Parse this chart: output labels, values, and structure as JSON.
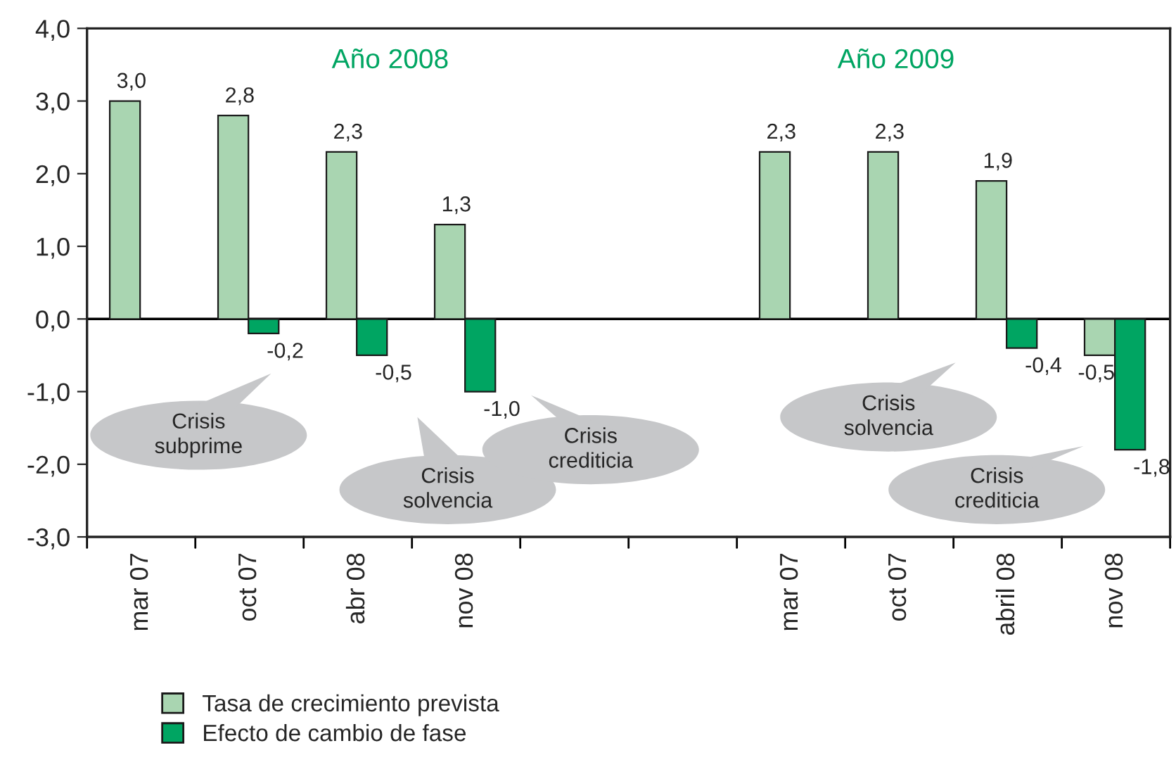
{
  "chart_data": {
    "type": "bar",
    "categories": [
      "mar 07",
      "oct 07",
      "abr 08",
      "nov 08",
      null,
      null,
      "mar 07",
      "oct 07",
      "abril 08",
      "nov 08"
    ],
    "series": [
      {
        "name": "Tasa de crecimiento prevista",
        "color": "#a9d5b1",
        "values": [
          3.0,
          2.8,
          2.3,
          1.3,
          null,
          null,
          2.3,
          2.3,
          1.9,
          -0.5
        ],
        "value_labels": [
          "3,0",
          "2,8",
          "2,3",
          "1,3",
          null,
          null,
          "2,3",
          "2,3",
          "1,9",
          "-0,5"
        ]
      },
      {
        "name": "Efecto de cambio de fase",
        "color": "#00a562",
        "values": [
          null,
          -0.2,
          -0.5,
          -1.0,
          null,
          null,
          null,
          null,
          -0.4,
          -1.8
        ],
        "value_labels": [
          null,
          "-0,2",
          "-0,5",
          "-1,0",
          null,
          null,
          null,
          null,
          "-0,4",
          "-1,8"
        ]
      }
    ],
    "ylim": [
      -3,
      4
    ],
    "yticks": [
      {
        "value": -3,
        "label": "-3,0"
      },
      {
        "value": -2,
        "label": "-2,0"
      },
      {
        "value": -1,
        "label": "-1,0"
      },
      {
        "value": 0,
        "label": "0,0"
      },
      {
        "value": 1,
        "label": "1,0"
      },
      {
        "value": 2,
        "label": "2,0"
      },
      {
        "value": 3,
        "label": "3,0"
      },
      {
        "value": 4,
        "label": "4,0"
      }
    ],
    "ref_lines": [
      {
        "axis": "y",
        "value": 0,
        "color": "#000000"
      }
    ],
    "annotations": [
      "Año 2008",
      "Año 2009",
      "Crisis\nsubprime",
      "Crisis\nsolvencia",
      "Crisis\ncrediticia",
      "Crisis\nsolvencia",
      "Crisis\ncrediticia"
    ],
    "grid": false,
    "legend": "bottom left"
  }
}
